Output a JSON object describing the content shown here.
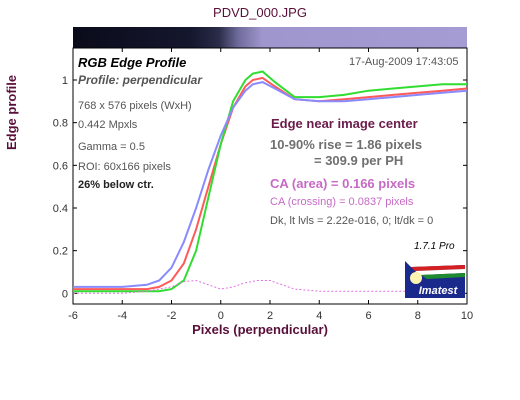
{
  "file_title": "PDVD_000.JPG",
  "chart_data": {
    "type": "line",
    "title": "RGB Edge Profile",
    "subtitle": "Profile: perpendicular",
    "timestamp": "17-Aug-2009 17:43:05",
    "xlabel": "Pixels (perpendicular)",
    "ylabel": "Edge profile",
    "xlim": [
      -6,
      10
    ],
    "ylim": [
      -0.05,
      1.15
    ],
    "xticks": [
      "-6",
      "-4",
      "-2",
      "0",
      "2",
      "4",
      "6",
      "8",
      "10"
    ],
    "yticks": [
      "0",
      "0.2",
      "0.4",
      "0.6",
      "0.8",
      "1"
    ],
    "grid": false,
    "series": [
      {
        "color": "#ff5a5a",
        "x": [
          -6,
          -4,
          -3,
          -2.5,
          -2,
          -1.5,
          -1,
          -0.5,
          0,
          0.5,
          1,
          1.3,
          1.7,
          2.2,
          3,
          4,
          5,
          6,
          7,
          8,
          9,
          10
        ],
        "y": [
          0.02,
          0.02,
          0.02,
          0.03,
          0.06,
          0.14,
          0.3,
          0.5,
          0.7,
          0.87,
          0.97,
          1.0,
          1.01,
          0.97,
          0.91,
          0.9,
          0.91,
          0.92,
          0.93,
          0.94,
          0.95,
          0.96
        ]
      },
      {
        "color": "#30dd30",
        "x": [
          -6,
          -4,
          -3,
          -2.5,
          -2,
          -1.5,
          -1,
          -0.5,
          0,
          0.5,
          1,
          1.3,
          1.7,
          2.2,
          3,
          4,
          5,
          6,
          7,
          8,
          9,
          10
        ],
        "y": [
          0.01,
          0.01,
          0.01,
          0.01,
          0.02,
          0.06,
          0.2,
          0.45,
          0.7,
          0.9,
          1.0,
          1.03,
          1.04,
          0.99,
          0.92,
          0.92,
          0.93,
          0.95,
          0.96,
          0.97,
          0.98,
          0.98
        ]
      },
      {
        "color": "#8a8aff",
        "x": [
          -6,
          -4,
          -3,
          -2.5,
          -2,
          -1.5,
          -1,
          -0.5,
          0,
          0.5,
          1,
          1.3,
          1.7,
          2.2,
          3,
          4,
          5,
          6,
          7,
          8,
          9,
          10
        ],
        "y": [
          0.03,
          0.03,
          0.04,
          0.06,
          0.12,
          0.24,
          0.4,
          0.58,
          0.74,
          0.87,
          0.95,
          0.98,
          0.99,
          0.96,
          0.91,
          0.9,
          0.9,
          0.91,
          0.92,
          0.93,
          0.94,
          0.95
        ]
      },
      {
        "color": "#e070e0",
        "dashed": true,
        "x": [
          -6,
          -4,
          -3,
          -2,
          -1.5,
          -1,
          -0.5,
          0,
          0.5,
          1,
          1.5,
          2,
          2.5,
          3,
          4,
          5,
          6,
          7,
          8,
          9,
          10
        ],
        "y": [
          0.0,
          0.0,
          0.01,
          0.03,
          0.055,
          0.06,
          0.04,
          0.02,
          0.03,
          0.05,
          0.06,
          0.06,
          0.04,
          0.02,
          0.01,
          0.01,
          0.01,
          0.01,
          0.01,
          0.0,
          0.0
        ]
      }
    ]
  },
  "info": {
    "dims": "768 x 576 pixels (WxH)",
    "mpxls": "0.442 Mpxls",
    "gamma": "Gamma = 0.5",
    "roi": "ROI: 60x166 pixels",
    "below": "26% below ctr."
  },
  "results": {
    "edge_location": "Edge near image center",
    "rise_line1": "10-90% rise = 1.86 pixels",
    "rise_line2": "= 309.9 per PH",
    "ca_area": "CA (area) = 0.166 pixels",
    "ca_crossing": "CA (crossing) = 0.0837 pixels",
    "dark_light": "Dk, lt lvls = 2.22e-016, 0;  lt/dk = 0"
  },
  "version": "1.7.1  Pro",
  "logo_text": "Imatest"
}
